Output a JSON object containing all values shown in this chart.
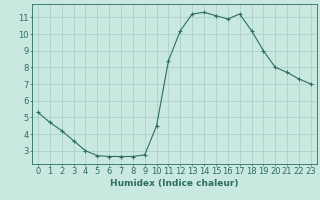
{
  "x": [
    0,
    1,
    2,
    3,
    4,
    5,
    6,
    7,
    8,
    9,
    10,
    11,
    12,
    13,
    14,
    15,
    16,
    17,
    18,
    19,
    20,
    21,
    22,
    23
  ],
  "y": [
    5.3,
    4.7,
    4.2,
    3.6,
    3.0,
    2.7,
    2.65,
    2.65,
    2.65,
    2.75,
    4.5,
    8.4,
    10.2,
    11.2,
    11.3,
    11.1,
    10.9,
    11.2,
    10.2,
    9.0,
    8.0,
    7.7,
    7.3,
    7.0
  ],
  "line_color": "#2e6e60",
  "marker": "+",
  "marker_size": 3,
  "bg_color": "#c8e8e0",
  "grid_color": "#a8ccc4",
  "xlabel": "Humidex (Indice chaleur)",
  "xlim": [
    -0.5,
    23.5
  ],
  "ylim": [
    2.2,
    11.8
  ],
  "yticks": [
    3,
    4,
    5,
    6,
    7,
    8,
    9,
    10,
    11
  ],
  "xticks": [
    0,
    1,
    2,
    3,
    4,
    5,
    6,
    7,
    8,
    9,
    10,
    11,
    12,
    13,
    14,
    15,
    16,
    17,
    18,
    19,
    20,
    21,
    22,
    23
  ],
  "xtick_labels": [
    "0",
    "1",
    "2",
    "3",
    "4",
    "5",
    "6",
    "7",
    "8",
    "9",
    "10",
    "11",
    "12",
    "13",
    "14",
    "15",
    "16",
    "17",
    "18",
    "19",
    "20",
    "21",
    "22",
    "23"
  ],
  "tick_color": "#2e6e60",
  "axis_color": "#2e6e60",
  "font_color": "#2e6e60",
  "xlabel_fontsize": 6.5,
  "tick_fontsize": 6.0,
  "linewidth": 0.8,
  "markeredgewidth": 0.8
}
